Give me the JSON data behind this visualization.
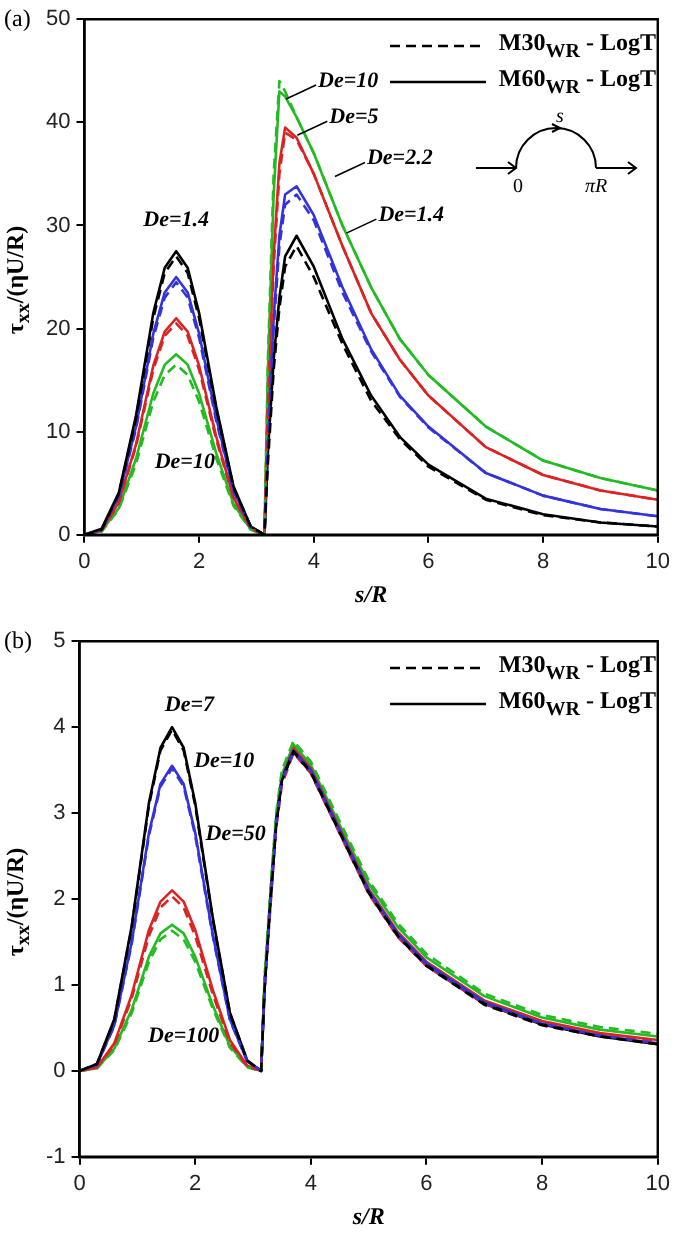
{
  "chart_data": [
    {
      "type": "line",
      "title": "(a)",
      "xlabel": "s/R",
      "ylabel": "τ$_{xx}$/(ηU/R)",
      "xlim": [
        0,
        10
      ],
      "xticks": [
        0,
        2,
        4,
        6,
        8,
        10
      ],
      "ylim": [
        0,
        50
      ],
      "yticks": [
        0,
        10,
        20,
        30,
        40,
        50
      ],
      "grid": false,
      "legend": "top right",
      "x": [
        0,
        0.3,
        0.6,
        0.9,
        1.2,
        1.4,
        1.6,
        1.8,
        2.0,
        2.3,
        2.6,
        2.9,
        3.14,
        3.2,
        3.3,
        3.4,
        3.5,
        3.7,
        4.0,
        4.5,
        5,
        5.5,
        6,
        7,
        8,
        9,
        10
      ],
      "series": [
        {
          "name": "M30$_{WR}$ - LogT",
          "color": "#000000",
          "line_style": "dashed",
          "values": [
            0,
            0.5,
            4,
            11.3,
            21,
            25.4,
            27,
            25.4,
            21,
            12.2,
            4.6,
            0.8,
            0,
            7,
            16,
            22,
            26,
            28,
            25,
            18.5,
            13,
            9.3,
            6.6,
            3.4,
            1.9,
            1.2,
            0.8
          ]
        },
        {
          "name": "M60$_{WR}$ - LogT",
          "color": "#000000",
          "line_style": "solid",
          "values": [
            0,
            0.6,
            4.1,
            11.6,
            21.5,
            25.9,
            27.5,
            25.9,
            21.5,
            12.4,
            4.7,
            0.8,
            0,
            8,
            17,
            23,
            27,
            29,
            26,
            19,
            13.5,
            9.5,
            6.8,
            3.5,
            2,
            1.2,
            0.8
          ]
        },
        {
          "color": "#3333dd",
          "line_style": "dashed",
          "values": [
            0,
            0.5,
            3.7,
            10.3,
            19.1,
            23,
            24.5,
            23,
            19.1,
            11,
            4.2,
            0.7,
            0,
            9,
            20,
            28,
            32,
            33,
            30.5,
            23.5,
            17.8,
            13.4,
            10.4,
            6,
            3.8,
            2.5,
            1.8
          ]
        },
        {
          "color": "#3333dd",
          "line_style": "solid",
          "values": [
            0,
            0.5,
            3.8,
            10.5,
            19.5,
            23.5,
            25,
            23.5,
            19.5,
            11.3,
            4.3,
            0.8,
            0,
            10,
            21,
            29,
            33,
            33.8,
            31,
            24,
            18,
            13.5,
            10.5,
            6,
            3.8,
            2.5,
            1.8
          ]
        },
        {
          "color": "#dd2222",
          "line_style": "dashed",
          "values": [
            0,
            0.4,
            3.1,
            8.6,
            16,
            19.3,
            20.5,
            19.3,
            16,
            9.2,
            3.5,
            0.6,
            0,
            12,
            26,
            35,
            39,
            38.3,
            35,
            28,
            21.5,
            17,
            13.5,
            8.5,
            5.8,
            4.3,
            3.4
          ]
        },
        {
          "color": "#dd2222",
          "line_style": "solid",
          "values": [
            0,
            0.4,
            3.2,
            8.8,
            16.4,
            19.7,
            21,
            19.7,
            16.4,
            9.5,
            3.6,
            0.6,
            0,
            13,
            27,
            36,
            39.5,
            38.5,
            35,
            28,
            21.5,
            17,
            13.5,
            8.5,
            5.8,
            4.3,
            3.4
          ]
        },
        {
          "color": "#22bb22",
          "line_style": "dashed",
          "values": [
            0,
            0.3,
            2.5,
            6.9,
            12.9,
            15.5,
            16.5,
            15.5,
            12.9,
            7.4,
            2.8,
            0.5,
            0,
            17,
            35,
            44,
            43,
            40.5,
            37,
            30,
            24,
            19,
            15.5,
            10.5,
            7.2,
            5.5,
            4.3
          ]
        },
        {
          "color": "#22bb22",
          "line_style": "solid",
          "values": [
            0,
            0.4,
            2.6,
            7.4,
            13.7,
            16.5,
            17.5,
            16.5,
            13.7,
            7.9,
            3,
            0.5,
            0,
            16,
            33,
            43,
            42.5,
            40.5,
            37,
            30,
            24,
            19,
            15.5,
            10.5,
            7.2,
            5.5,
            4.3
          ]
        }
      ],
      "annotations": [
        "s",
        "0",
        "πR",
        "De=1.4",
        "De=10",
        "De=10",
        "De=5",
        "De=2.2",
        "De=1.4"
      ]
    },
    {
      "type": "line",
      "title": "(b)",
      "xlabel": "s/R",
      "ylabel": "τ$_{xx}$/(ηU/R)",
      "xlim": [
        0,
        10
      ],
      "xticks": [
        0,
        2,
        4,
        6,
        8,
        10
      ],
      "ylim": [
        -1,
        5
      ],
      "yticks": [
        -1,
        0,
        1,
        2,
        3,
        4,
        5
      ],
      "grid": false,
      "legend": "top right",
      "x": [
        0,
        0.3,
        0.6,
        0.9,
        1.2,
        1.4,
        1.6,
        1.8,
        2.0,
        2.3,
        2.6,
        2.9,
        3.14,
        3.2,
        3.3,
        3.4,
        3.5,
        3.7,
        4.0,
        4.5,
        5,
        5.5,
        6,
        7,
        8,
        9,
        10
      ],
      "series": [
        {
          "name": "M30$_{WR}$ - LogT",
          "color": "#000000",
          "line_style": "dashed",
          "values": [
            0,
            0.08,
            0.59,
            1.66,
            3.09,
            3.73,
            3.97,
            3.73,
            3.09,
            1.78,
            0.67,
            0.12,
            0,
            0.95,
            1.95,
            2.85,
            3.38,
            3.71,
            3.47,
            2.77,
            2.07,
            1.57,
            1.22,
            0.77,
            0.53,
            0.4,
            0.31
          ]
        },
        {
          "name": "M60$_{WR}$ - LogT",
          "color": "#000000",
          "line_style": "solid",
          "values": [
            0,
            0.08,
            0.6,
            1.68,
            3.12,
            3.76,
            4,
            3.76,
            3.12,
            1.8,
            0.68,
            0.12,
            0,
            1,
            2,
            2.9,
            3.4,
            3.72,
            3.48,
            2.78,
            2.08,
            1.58,
            1.23,
            0.78,
            0.54,
            0.4,
            0.31
          ]
        },
        {
          "color": "#3333dd",
          "line_style": "dashed",
          "values": [
            0,
            0.07,
            0.52,
            1.47,
            2.74,
            3.31,
            3.52,
            3.31,
            2.74,
            1.58,
            0.59,
            0.11,
            0,
            0.95,
            1.95,
            2.85,
            3.38,
            3.72,
            3.49,
            2.79,
            2.09,
            1.59,
            1.24,
            0.79,
            0.55,
            0.41,
            0.32
          ]
        },
        {
          "color": "#3333dd",
          "line_style": "solid",
          "values": [
            0,
            0.07,
            0.53,
            1.49,
            2.77,
            3.34,
            3.55,
            3.34,
            2.77,
            1.6,
            0.6,
            0.11,
            0,
            1,
            2,
            2.9,
            3.4,
            3.73,
            3.5,
            2.8,
            2.1,
            1.6,
            1.25,
            0.8,
            0.55,
            0.41,
            0.32
          ]
        },
        {
          "color": "#dd2222",
          "line_style": "dashed",
          "values": [
            0,
            0.04,
            0.3,
            0.84,
            1.57,
            1.9,
            2.03,
            1.9,
            1.57,
            0.9,
            0.33,
            0.05,
            0,
            0.92,
            1.9,
            2.82,
            3.33,
            3.7,
            3.46,
            2.76,
            2.06,
            1.56,
            1.22,
            0.78,
            0.55,
            0.42,
            0.34
          ]
        },
        {
          "color": "#dd2222",
          "line_style": "solid",
          "values": [
            0,
            0.04,
            0.32,
            0.88,
            1.64,
            1.97,
            2.1,
            1.97,
            1.64,
            0.95,
            0.36,
            0.06,
            0,
            1,
            2,
            2.9,
            3.4,
            3.76,
            3.52,
            2.82,
            2.12,
            1.62,
            1.27,
            0.82,
            0.58,
            0.44,
            0.36
          ]
        },
        {
          "color": "#22bb22",
          "line_style": "dashed",
          "values": [
            0,
            0.03,
            0.24,
            0.67,
            1.27,
            1.53,
            1.63,
            1.53,
            1.27,
            0.73,
            0.27,
            0.04,
            0,
            1.1,
            2.1,
            3.0,
            3.5,
            3.84,
            3.6,
            2.9,
            2.22,
            1.72,
            1.36,
            0.9,
            0.65,
            0.51,
            0.43
          ]
        },
        {
          "color": "#22bb22",
          "line_style": "solid",
          "values": [
            0,
            0.03,
            0.26,
            0.71,
            1.33,
            1.6,
            1.7,
            1.6,
            1.33,
            0.77,
            0.29,
            0.05,
            0,
            1.05,
            2.05,
            2.95,
            3.45,
            3.8,
            3.56,
            2.86,
            2.18,
            1.68,
            1.32,
            0.87,
            0.62,
            0.48,
            0.4
          ]
        }
      ],
      "annotations": [
        "De=7",
        "De=10",
        "De=50",
        "De=100"
      ]
    }
  ]
}
